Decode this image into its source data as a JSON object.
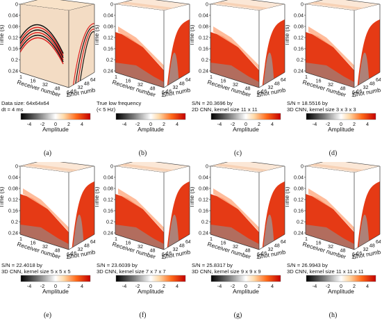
{
  "figure": {
    "axis_labels": {
      "time": "Time (s)",
      "receiver": "Receiver number",
      "shot": "Shot number",
      "amplitude": "Amplitude"
    },
    "time_ticks": [
      "0",
      "0.04",
      "0.08",
      "0.12",
      "0.16",
      "0.2",
      "0.24"
    ],
    "receiver_ticks": [
      "1",
      "16",
      "32",
      "48",
      "64"
    ],
    "shot_ticks": [
      "1",
      "16",
      "32",
      "48",
      "64"
    ],
    "colorbar_ticks": [
      "-4",
      "-2",
      "0",
      "2",
      "4"
    ],
    "colors": {
      "negative": "#000000",
      "zero": "#ffffff",
      "positive": "#cc0000",
      "peak": "#ffdd66"
    },
    "panels": [
      {
        "id": "a",
        "label": "(a)",
        "caption1": "Data size: 64x64x64",
        "caption2": "dt = 4 ms",
        "kind": "full"
      },
      {
        "id": "b",
        "label": "(b)",
        "caption1": "True low frequency",
        "caption2": "(< 5 Hz)",
        "kind": "low"
      },
      {
        "id": "c",
        "label": "(c)",
        "caption1": "S/N = 20.3696 by",
        "caption2": "2D CNN, kernel size 11 x 11",
        "kind": "low"
      },
      {
        "id": "d",
        "label": "(d)",
        "caption1": "S/N = 18.5516 by",
        "caption2": "3D CNN, kernel size 3 x 3 x 3",
        "kind": "low"
      },
      {
        "id": "e",
        "label": "(e)",
        "caption1": "S/N = 22.4018 by",
        "caption2": "3D CNN, kernel size 5 x 5 x 5",
        "kind": "low"
      },
      {
        "id": "f",
        "label": "(f)",
        "caption1": "S/N = 23.6039 by",
        "caption2": "3D CNN, kernel size 7 x 7 x 7",
        "kind": "low"
      },
      {
        "id": "g",
        "label": "(g)",
        "caption1": "S/N = 25.8317 by",
        "caption2": "3D CNN, kernel size 9 x 9 x 9",
        "kind": "low"
      },
      {
        "id": "h",
        "label": "(h)",
        "caption1": "S/N = 26.9943 by",
        "caption2": "3D CNN, kernel size 11 x 11 x 11",
        "kind": "low"
      }
    ]
  }
}
